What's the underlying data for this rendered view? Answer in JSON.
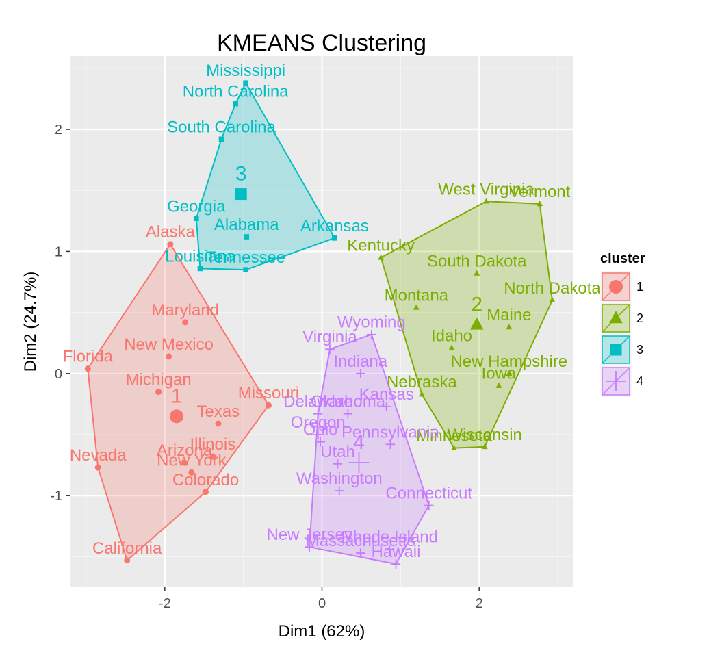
{
  "chart_data": {
    "type": "scatter",
    "title": "KMEANS Clustering",
    "xlabel": "Dim1 (62%)",
    "ylabel": "Dim2 (24.7%)",
    "xlim": [
      -3.2,
      3.2
    ],
    "ylim": [
      -1.75,
      2.6
    ],
    "xticks": [
      -2,
      0,
      2
    ],
    "xtick_labels": [
      "-2",
      "0",
      "2"
    ],
    "yticks": [
      -1,
      0,
      1,
      2
    ],
    "ytick_labels": [
      "-1",
      "0",
      "1",
      "2"
    ],
    "legend": {
      "title": "cluster",
      "position": "right",
      "entries": [
        "1",
        "2",
        "3",
        "4"
      ]
    },
    "clusters": [
      {
        "id": "1",
        "color": "#F8766D",
        "shape": "circle",
        "center": [
          -1.85,
          -0.35
        ],
        "center_label": "1",
        "hull": [
          [
            -1.93,
            1.06
          ],
          [
            -0.68,
            -0.26
          ],
          [
            -1.48,
            -0.97
          ],
          [
            -2.48,
            -1.53
          ],
          [
            -2.85,
            -0.77
          ],
          [
            -2.98,
            0.04
          ]
        ],
        "points": [
          {
            "label": "Alaska",
            "x": -1.93,
            "y": 1.06
          },
          {
            "label": "Maryland",
            "x": -1.74,
            "y": 0.42
          },
          {
            "label": "New Mexico",
            "x": -1.95,
            "y": 0.14
          },
          {
            "label": "Florida",
            "x": -2.98,
            "y": 0.04
          },
          {
            "label": "Michigan",
            "x": -2.08,
            "y": -0.15
          },
          {
            "label": "Missouri",
            "x": -0.68,
            "y": -0.26
          },
          {
            "label": "Texas",
            "x": -1.32,
            "y": -0.41
          },
          {
            "label": "Illinois",
            "x": -1.39,
            "y": -0.68
          },
          {
            "label": "Arizona",
            "x": -1.75,
            "y": -0.73
          },
          {
            "label": "Nevada",
            "x": -2.85,
            "y": -0.77
          },
          {
            "label": "New York",
            "x": -1.66,
            "y": -0.81
          },
          {
            "label": "Colorado",
            "x": -1.48,
            "y": -0.97
          },
          {
            "label": "California",
            "x": -2.48,
            "y": -1.53
          }
        ]
      },
      {
        "id": "2",
        "color": "#7CAE00",
        "shape": "triangle",
        "center": [
          1.97,
          0.4
        ],
        "center_label": "2",
        "hull": [
          [
            0.75,
            0.95
          ],
          [
            2.09,
            1.41
          ],
          [
            2.77,
            1.39
          ],
          [
            2.93,
            0.6
          ],
          [
            2.07,
            -0.6
          ],
          [
            1.68,
            -0.61
          ],
          [
            1.27,
            -0.17
          ]
        ],
        "points": [
          {
            "label": "West Virginia",
            "x": 2.09,
            "y": 1.41
          },
          {
            "label": "Vermont",
            "x": 2.77,
            "y": 1.39
          },
          {
            "label": "Kentucky",
            "x": 0.75,
            "y": 0.95
          },
          {
            "label": "South Dakota",
            "x": 1.97,
            "y": 0.82
          },
          {
            "label": "North Dakota",
            "x": 2.93,
            "y": 0.6
          },
          {
            "label": "Montana",
            "x": 1.2,
            "y": 0.54
          },
          {
            "label": "Maine",
            "x": 2.38,
            "y": 0.38
          },
          {
            "label": "Idaho",
            "x": 1.65,
            "y": 0.21
          },
          {
            "label": "New Hampshire",
            "x": 2.38,
            "y": -0.0
          },
          {
            "label": "Iowa",
            "x": 2.25,
            "y": -0.1
          },
          {
            "label": "Nebraska",
            "x": 1.27,
            "y": -0.17
          },
          {
            "label": "Minnesota",
            "x": 1.68,
            "y": -0.61
          },
          {
            "label": "Wisconsin",
            "x": 2.07,
            "y": -0.6
          }
        ]
      },
      {
        "id": "3",
        "color": "#00BFC4",
        "shape": "square",
        "center": [
          -1.03,
          1.47
        ],
        "center_label": "3",
        "hull": [
          [
            -0.97,
            2.38
          ],
          [
            0.16,
            1.11
          ],
          [
            -0.97,
            0.85
          ],
          [
            -1.55,
            0.86
          ],
          [
            -1.6,
            1.27
          ],
          [
            -1.28,
            1.92
          ],
          [
            -1.1,
            2.21
          ]
        ],
        "points": [
          {
            "label": "Mississippi",
            "x": -0.97,
            "y": 2.38
          },
          {
            "label": "North Carolina",
            "x": -1.1,
            "y": 2.21
          },
          {
            "label": "South Carolina",
            "x": -1.28,
            "y": 1.92
          },
          {
            "label": "Georgia",
            "x": -1.6,
            "y": 1.27
          },
          {
            "label": "Alabama",
            "x": -0.96,
            "y": 1.12
          },
          {
            "label": "Arkansas",
            "x": 0.16,
            "y": 1.11
          },
          {
            "label": "Louisiana",
            "x": -1.55,
            "y": 0.86
          },
          {
            "label": "Tennessee",
            "x": -0.97,
            "y": 0.85
          }
        ]
      },
      {
        "id": "4",
        "color": "#C77CFF",
        "shape": "cross",
        "center": [
          0.47,
          -0.73
        ],
        "center_label": "4",
        "hull": [
          [
            0.1,
            0.2
          ],
          [
            0.63,
            0.32
          ],
          [
            1.36,
            -1.08
          ],
          [
            0.94,
            -1.56
          ],
          [
            -0.16,
            -1.42
          ],
          [
            -0.05,
            -0.33
          ]
        ],
        "points": [
          {
            "label": "Wyoming",
            "x": 0.63,
            "y": 0.32
          },
          {
            "label": "Virginia",
            "x": 0.1,
            "y": 0.2
          },
          {
            "label": "Indiana",
            "x": 0.49,
            "y": -0.0
          },
          {
            "label": "Kansas",
            "x": 0.82,
            "y": -0.27
          },
          {
            "label": "Delaware",
            "x": -0.05,
            "y": -0.33
          },
          {
            "label": "Oklahoma",
            "x": 0.33,
            "y": -0.33
          },
          {
            "label": "Oregon",
            "x": -0.05,
            "y": -0.5
          },
          {
            "label": "Pennsylvania",
            "x": 0.87,
            "y": -0.58
          },
          {
            "label": "Ohio",
            "x": -0.02,
            "y": -0.56
          },
          {
            "label": "Utah",
            "x": 0.2,
            "y": -0.74
          },
          {
            "label": "Washington",
            "x": 0.22,
            "y": -0.96
          },
          {
            "label": "Connecticut",
            "x": 1.36,
            "y": -1.08
          },
          {
            "label": "New Jersey",
            "x": -0.16,
            "y": -1.42
          },
          {
            "label": "Massachusetts",
            "x": 0.49,
            "y": -1.47
          },
          {
            "label": "Rhode Island",
            "x": 0.86,
            "y": -1.44
          },
          {
            "label": "Hawaii",
            "x": 0.94,
            "y": -1.56
          }
        ]
      }
    ]
  }
}
